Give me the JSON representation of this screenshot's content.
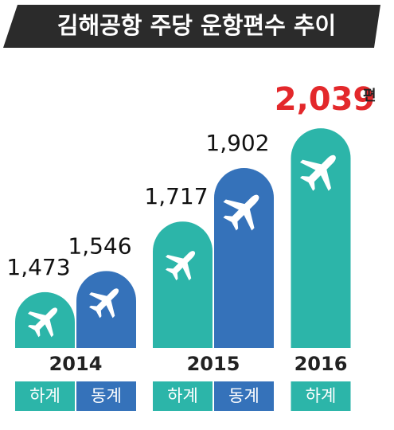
{
  "chart_data": {
    "type": "bar",
    "title": "김해공항 주당 운항편수 추이",
    "unit": "편",
    "categories": [
      "2014",
      "2015",
      "2016"
    ],
    "series": [
      {
        "name": "하계",
        "color": "#2cb5a9",
        "values": [
          1473,
          1717,
          2039
        ],
        "value_labels": [
          "1,473",
          "1,717",
          "2,039"
        ]
      },
      {
        "name": "동계",
        "color": "#3572ba",
        "values": [
          1546,
          1902,
          null
        ],
        "value_labels": [
          "1,546",
          "1,902",
          null
        ]
      }
    ],
    "ylim": [
      1280,
      2100
    ],
    "highlight_color": "#e3282b"
  }
}
